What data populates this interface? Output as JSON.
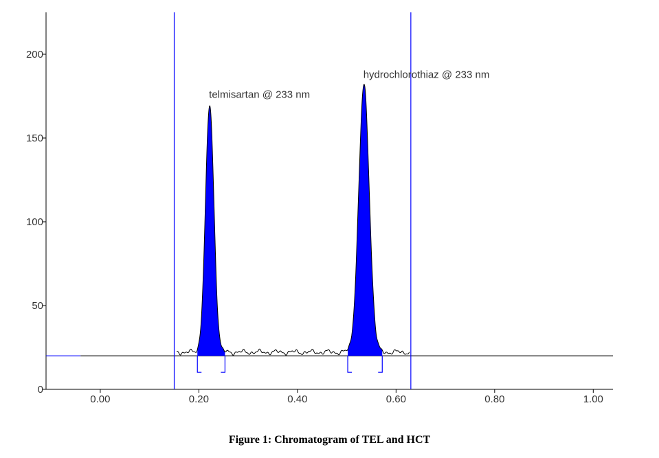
{
  "chart_data": {
    "type": "line",
    "title": "",
    "xlabel": "",
    "ylabel": "",
    "xlim": [
      -0.11,
      1.04
    ],
    "ylim": [
      0,
      225
    ],
    "grid": false,
    "xticks": [
      0.0,
      0.2,
      0.4,
      0.6,
      0.8,
      1.0
    ],
    "xtick_labels": [
      "0.00",
      "0.20",
      "0.40",
      "0.60",
      "0.80",
      "1.00"
    ],
    "yticks": [
      0,
      50,
      100,
      150,
      200
    ],
    "ytick_labels": [
      "0",
      "50",
      "100",
      "150",
      "200"
    ],
    "baseline": 20,
    "window_markers": [
      0.15,
      0.63
    ],
    "signal_range": [
      0.155,
      0.627
    ],
    "peaks": [
      {
        "name": "telmisartan @ 233 nm",
        "retention": 0.222,
        "height": 169,
        "integration_start": 0.197,
        "integration_end": 0.253,
        "fill_color": "#0000ff"
      },
      {
        "name": "hydrochlorothiaz @ 233 nm",
        "retention": 0.535,
        "height": 181,
        "integration_start": 0.502,
        "integration_end": 0.572,
        "fill_color": "#0000ff"
      }
    ],
    "colors": {
      "trace": "#000000",
      "markers": "#0000ff",
      "baseline_left": "#0000ff"
    }
  },
  "caption": "Figure 1: Chromatogram of TEL and HCT"
}
